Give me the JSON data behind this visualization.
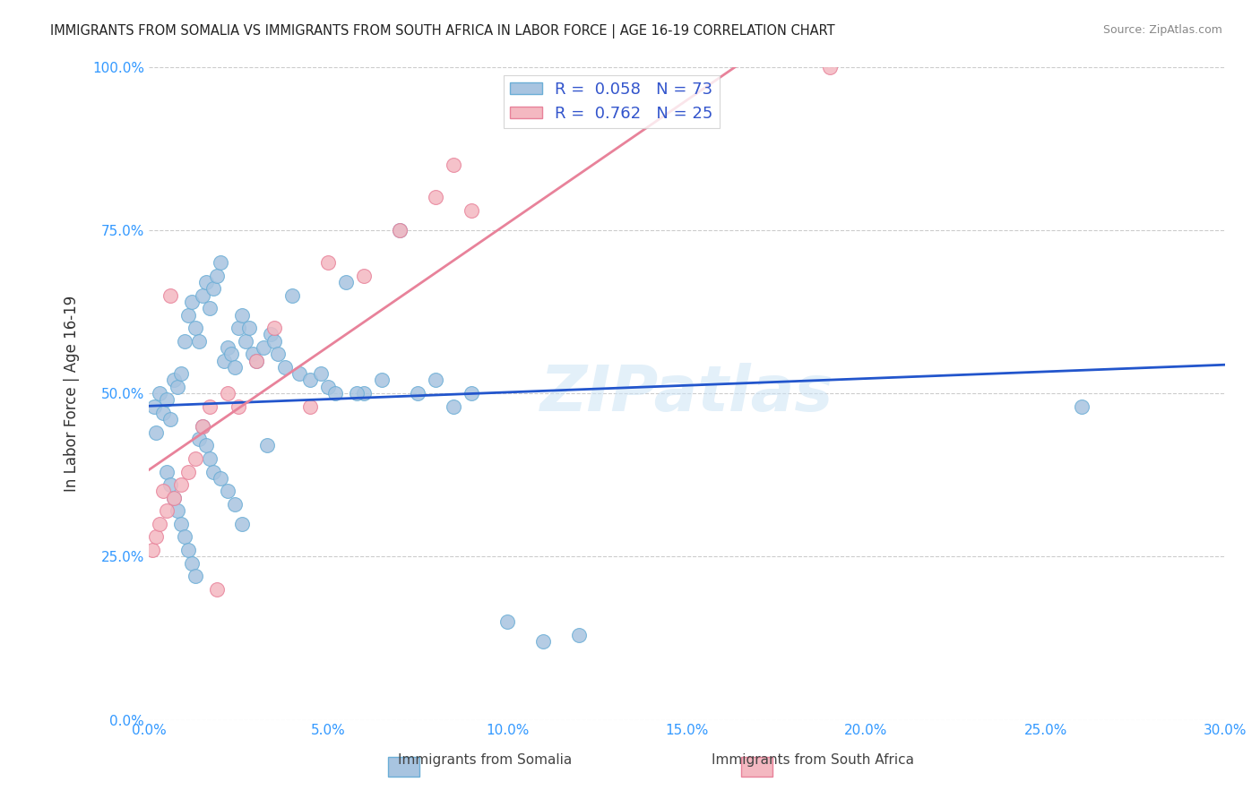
{
  "title": "IMMIGRANTS FROM SOMALIA VS IMMIGRANTS FROM SOUTH AFRICA IN LABOR FORCE | AGE 16-19 CORRELATION CHART",
  "source": "Source: ZipAtlas.com",
  "ylabel": "In Labor Force | Age 16-19",
  "x_tick_labels": [
    "0.0%",
    "5.0%",
    "10.0%",
    "15.0%",
    "20.0%",
    "25.0%",
    "30.0%"
  ],
  "x_tick_vals": [
    0.0,
    5.0,
    10.0,
    15.0,
    20.0,
    25.0,
    30.0
  ],
  "y_tick_labels": [
    "0.0%",
    "25.0%",
    "50.0%",
    "75.0%",
    "100.0%"
  ],
  "y_tick_vals": [
    0.0,
    25.0,
    50.0,
    75.0,
    100.0
  ],
  "xlim": [
    0.0,
    30.0
  ],
  "ylim": [
    0.0,
    100.0
  ],
  "somalia_color": "#a8c4e0",
  "somalia_edge_color": "#6baed6",
  "south_africa_color": "#f4b8c1",
  "south_africa_edge_color": "#e8829a",
  "somalia_line_color": "#2255cc",
  "south_africa_line_color": "#e8829a",
  "R_somalia": 0.058,
  "N_somalia": 73,
  "R_south_africa": 0.762,
  "N_south_africa": 25,
  "legend_label_somalia": "Immigrants from Somalia",
  "legend_label_south_africa": "Immigrants from South Africa",
  "watermark": "ZIPatlas",
  "somalia_x": [
    0.15,
    0.2,
    0.3,
    0.4,
    0.5,
    0.6,
    0.7,
    0.8,
    0.9,
    1.0,
    1.1,
    1.2,
    1.3,
    1.4,
    1.5,
    1.6,
    1.7,
    1.8,
    1.9,
    2.0,
    2.1,
    2.2,
    2.3,
    2.4,
    2.5,
    2.6,
    2.7,
    2.8,
    2.9,
    3.0,
    3.2,
    3.4,
    3.5,
    3.6,
    3.8,
    4.0,
    4.2,
    4.5,
    4.8,
    5.0,
    5.5,
    6.0,
    6.5,
    7.0,
    7.5,
    8.0,
    8.5,
    9.0,
    10.0,
    11.0,
    12.0,
    0.5,
    0.6,
    0.7,
    0.8,
    0.9,
    1.0,
    1.1,
    1.2,
    1.3,
    1.4,
    1.5,
    1.6,
    1.7,
    1.8,
    2.0,
    2.2,
    2.4,
    2.6,
    26.0,
    5.2,
    3.3,
    5.8
  ],
  "somalia_y": [
    48.0,
    44.0,
    50.0,
    47.0,
    49.0,
    46.0,
    52.0,
    51.0,
    53.0,
    58.0,
    62.0,
    64.0,
    60.0,
    58.0,
    65.0,
    67.0,
    63.0,
    66.0,
    68.0,
    70.0,
    55.0,
    57.0,
    56.0,
    54.0,
    60.0,
    62.0,
    58.0,
    60.0,
    56.0,
    55.0,
    57.0,
    59.0,
    58.0,
    56.0,
    54.0,
    65.0,
    53.0,
    52.0,
    53.0,
    51.0,
    67.0,
    50.0,
    52.0,
    75.0,
    50.0,
    52.0,
    48.0,
    50.0,
    15.0,
    12.0,
    13.0,
    38.0,
    36.0,
    34.0,
    32.0,
    30.0,
    28.0,
    26.0,
    24.0,
    22.0,
    43.0,
    45.0,
    42.0,
    40.0,
    38.0,
    37.0,
    35.0,
    33.0,
    30.0,
    48.0,
    50.0,
    42.0,
    50.0
  ],
  "south_africa_x": [
    0.1,
    0.2,
    0.3,
    0.4,
    0.5,
    0.7,
    0.9,
    1.1,
    1.3,
    1.5,
    1.7,
    1.9,
    2.2,
    2.5,
    3.0,
    3.5,
    4.5,
    5.0,
    6.0,
    7.0,
    8.0,
    8.5,
    9.0,
    0.6,
    19.0
  ],
  "south_africa_y": [
    26.0,
    28.0,
    30.0,
    35.0,
    32.0,
    34.0,
    36.0,
    38.0,
    40.0,
    45.0,
    48.0,
    20.0,
    50.0,
    48.0,
    55.0,
    60.0,
    48.0,
    70.0,
    68.0,
    75.0,
    80.0,
    85.0,
    78.0,
    65.0,
    100.0
  ]
}
